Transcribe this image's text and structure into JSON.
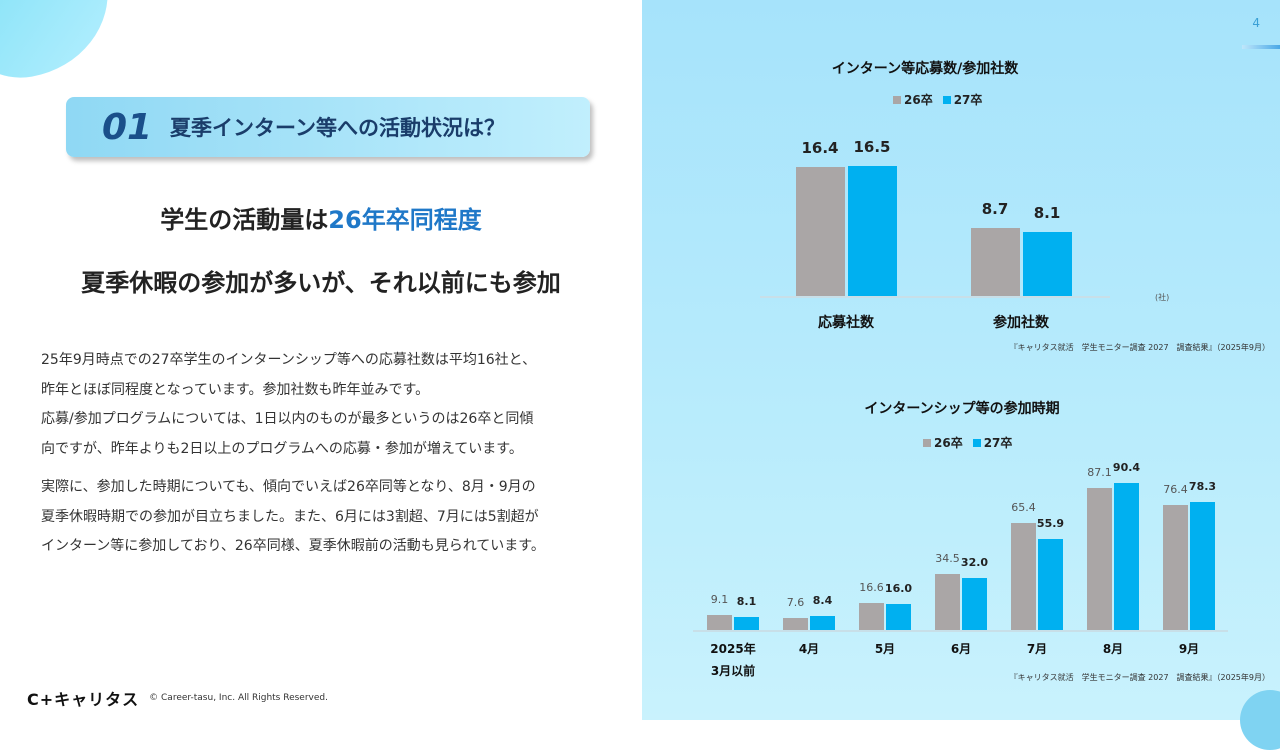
{
  "page_number": "4",
  "question": {
    "number": "01",
    "text": "夏季インターン等への活動状況は？"
  },
  "headline1": {
    "prefix": "学生の活動量は",
    "highlight": "26年卒同程度"
  },
  "headline2": "夏季休暇の参加が多いが、それ以前にも参加",
  "paragraph1": [
    "25年9月時点での27卒学生のインターンシップ等への応募社数は平均16社と、",
    "昨年とほぼ同程度となっています。参加社数も昨年並みです。",
    "応募/参加プログラムについては、1日以内のものが最多というのは26卒と同傾",
    "向ですが、昨年よりも2日以上のプログラムへの応募・参加が増えています。"
  ],
  "paragraph2": [
    "実際に、参加した時期についても、傾向でいえば26卒同等となり、8月・9月の",
    "夏季休暇時期での参加が目立ちました。また、6月には3割超、7月には5割超が",
    "インターン等に参加しており、26卒同様、夏季休暇前の活動も見られています。"
  ],
  "footer": {
    "logo": "C+キャリタス",
    "copyright": "© Career-tasu, Inc. All Rights Reserved."
  },
  "colors": {
    "series_26": "#aaa6a6",
    "series_27": "#00b0f0",
    "highlight": "#1f78c8"
  },
  "chart_data": [
    {
      "type": "bar",
      "title": "インターン等応募数/参加社数",
      "categories": [
        "応募社数",
        "参加社数"
      ],
      "series": [
        {
          "name": "26卒",
          "values": [
            16.4,
            8.7
          ]
        },
        {
          "name": "27卒",
          "values": [
            16.5,
            8.1
          ]
        }
      ],
      "unit": "(社)",
      "legend": "top",
      "source": "『キャリタス就活　学生モニター調査 2027　調査結果』（2025年9月）"
    },
    {
      "type": "bar",
      "title": "インターンシップ等の参加時期",
      "categories": [
        "2025年\n3月以前",
        "4月",
        "5月",
        "6月",
        "7月",
        "8月",
        "9月"
      ],
      "series": [
        {
          "name": "26卒",
          "values": [
            9.1,
            7.6,
            16.6,
            34.5,
            65.4,
            87.1,
            76.4
          ]
        },
        {
          "name": "27卒",
          "values": [
            8.1,
            8.4,
            16.0,
            32.0,
            55.9,
            90.4,
            78.3
          ]
        }
      ],
      "legend": "top",
      "source": "『キャリタス就活　学生モニター調査 2027　調査結果』（2025年9月）"
    }
  ]
}
